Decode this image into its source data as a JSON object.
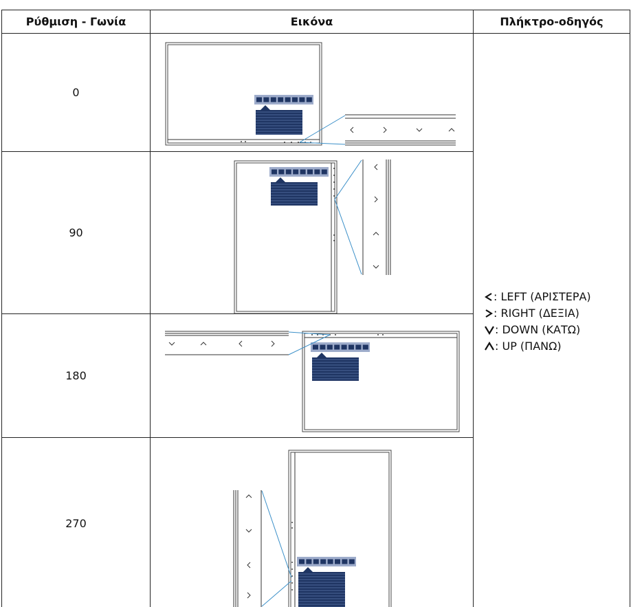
{
  "header": {
    "columns": [
      "Ρύθμιση - Γωνία",
      "Εικόνα",
      "Πλήκτρο-οδηγός"
    ]
  },
  "rows": [
    {
      "angle": 0
    },
    {
      "angle": 90
    },
    {
      "angle": 180
    },
    {
      "angle": 270
    }
  ],
  "key_guide": [
    ": LEFT (ΑΡΙΣΤΕΡΑ)",
    ": RIGHT (ΔΕΞΙΑ)",
    ": DOWN (ΚΑΤΩ)",
    ": UP (ΠΑΝΩ)"
  ]
}
